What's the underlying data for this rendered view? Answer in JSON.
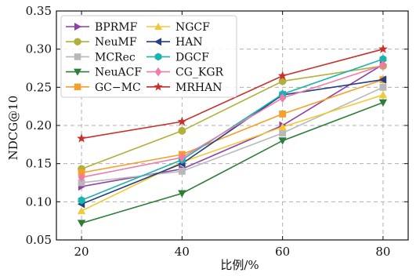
{
  "chart_data": {
    "type": "line",
    "title": "",
    "xlabel": "比例/%",
    "ylabel": "NDCG@10",
    "x": [
      20,
      40,
      60,
      80
    ],
    "x_ticks": [
      "20",
      "40",
      "60",
      "80"
    ],
    "y_ticks": [
      "0.05",
      "0.10",
      "0.15",
      "0.20",
      "0.25",
      "0.30",
      "0.35"
    ],
    "xlim": [
      15,
      85
    ],
    "ylim": [
      0.05,
      0.35
    ],
    "grid": true,
    "legend_position": "top-left",
    "legend_columns": 2,
    "series": [
      {
        "name": "BPRMF",
        "values": [
          0.12,
          0.143,
          0.2,
          0.28
        ],
        "color": "#8e3fa8",
        "marker": "triangle-right"
      },
      {
        "name": "NeuMF",
        "values": [
          0.143,
          0.193,
          0.258,
          0.278
        ],
        "color": "#b1b03a",
        "marker": "circle"
      },
      {
        "name": "MCRec",
        "values": [
          0.125,
          0.14,
          0.19,
          0.25
        ],
        "color": "#b8b8b8",
        "marker": "square"
      },
      {
        "name": "NeuACF",
        "values": [
          0.072,
          0.111,
          0.18,
          0.23
        ],
        "color": "#2f7d3a",
        "marker": "triangle-down"
      },
      {
        "name": "GC−MC",
        "values": [
          0.138,
          0.162,
          0.215,
          0.26
        ],
        "color": "#f5a02a",
        "marker": "square"
      },
      {
        "name": "NGCF",
        "values": [
          0.088,
          0.152,
          0.198,
          0.24
        ],
        "color": "#f2c935",
        "marker": "triangle-up"
      },
      {
        "name": "HAN",
        "values": [
          0.097,
          0.15,
          0.24,
          0.26
        ],
        "color": "#233f86",
        "marker": "triangle-left"
      },
      {
        "name": "DGCF",
        "values": [
          0.102,
          0.155,
          0.241,
          0.287
        ],
        "color": "#1bb3ae",
        "marker": "hexagon"
      },
      {
        "name": "CG_KGR",
        "values": [
          0.132,
          0.158,
          0.236,
          0.279
        ],
        "color": "#f07aa8",
        "marker": "diamond"
      },
      {
        "name": "MRHAN",
        "values": [
          0.183,
          0.205,
          0.265,
          0.3
        ],
        "color": "#c9302c",
        "marker": "star"
      }
    ]
  }
}
